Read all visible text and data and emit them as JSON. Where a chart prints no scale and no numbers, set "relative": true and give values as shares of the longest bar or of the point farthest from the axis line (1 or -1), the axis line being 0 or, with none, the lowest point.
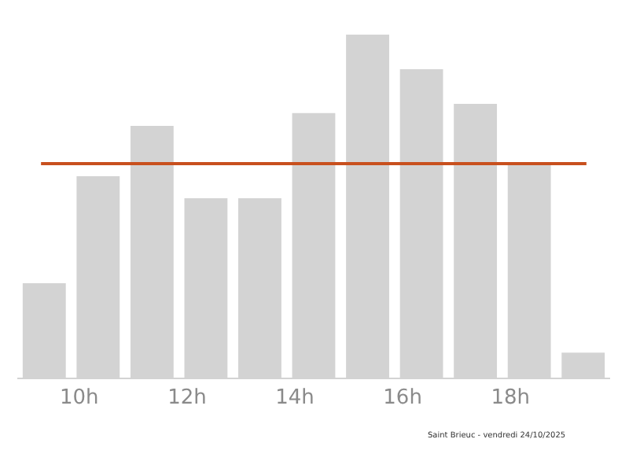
{
  "chart_data": {
    "type": "bar",
    "relative": true,
    "x": [
      9.35,
      10.35,
      11.35,
      12.35,
      13.35,
      14.35,
      15.35,
      16.35,
      17.35,
      18.35,
      19.35
    ],
    "xlim": [
      8.85,
      19.85
    ],
    "xticks": [
      {
        "value": 10,
        "label": "10h"
      },
      {
        "value": 12,
        "label": "12h"
      },
      {
        "value": 14,
        "label": "14h"
      },
      {
        "value": 16,
        "label": "16h"
      },
      {
        "value": 18,
        "label": "18h"
      }
    ],
    "values": [
      0.275,
      0.587,
      0.734,
      0.523,
      0.523,
      0.771,
      1,
      0.899,
      0.798,
      0.624,
      0.073
    ],
    "color": "#d3d3d3",
    "ref_lines": [
      {
        "axis": "y",
        "value": 0.624,
        "color": "#c8501e"
      }
    ],
    "grid": false,
    "legend": false,
    "annotations": [
      "Saint Brieuc - vendredi 24/10/2025"
    ]
  }
}
